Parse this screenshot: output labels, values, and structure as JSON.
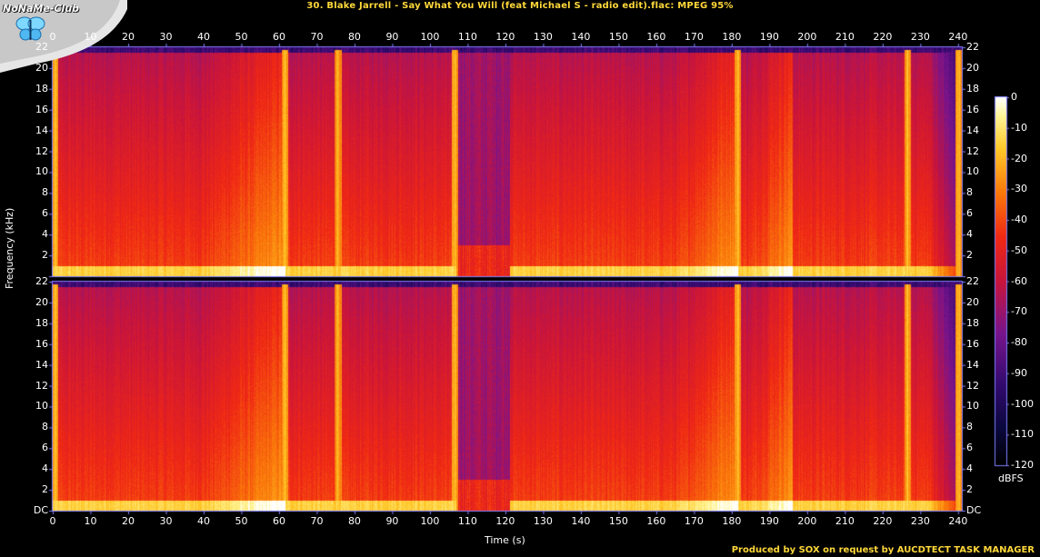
{
  "title": "30. Blake Jarrell - Say What You Will (feat Michael S - radio edit).flac: MPEG 95%",
  "footer": "Produced by SOX on request by AUCDTECT TASK MANAGER",
  "logo_text": "NoNaMe-Club",
  "colors": {
    "title": "#ffd83a",
    "background": "#000000",
    "axis": "#7f7fff"
  },
  "chart_data": {
    "type": "heatmap",
    "title": "30. Blake Jarrell - Say What You Will (feat Michael S - radio edit).flac: MPEG 95%",
    "xlabel": "Time (s)",
    "ylabel": "Frequency (kHz)",
    "colorbar_label": "dBFS",
    "xlim": [
      0,
      241
    ],
    "ylim": [
      0,
      22
    ],
    "x_ticks": [
      "0",
      "10",
      "20",
      "30",
      "40",
      "50",
      "60",
      "70",
      "80",
      "90",
      "100",
      "110",
      "120",
      "130",
      "140",
      "150",
      "160",
      "170",
      "180",
      "190",
      "200",
      "210",
      "220",
      "230",
      "240"
    ],
    "y_ticks": [
      "DC",
      "2",
      "4",
      "6",
      "8",
      "10",
      "12",
      "14",
      "16",
      "18",
      "20",
      "22"
    ],
    "colorbar_ticks": [
      "0",
      "-10",
      "-20",
      "-30",
      "-40",
      "-50",
      "-60",
      "-70",
      "-80",
      "-90",
      "-100",
      "-110",
      "-120"
    ],
    "colorbar_range": [
      -120,
      0
    ],
    "channels": 2,
    "grid": false,
    "breaks_s": [
      0.5,
      61.5,
      75.5,
      106.5,
      181.5,
      226.5,
      240
    ],
    "quiet_band_s": [
      107,
      121
    ],
    "lowpass_khz": 21.5
  }
}
